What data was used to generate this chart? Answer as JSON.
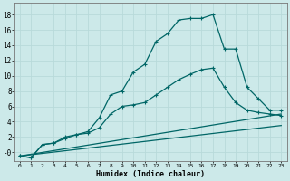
{
  "xlabel": "Humidex (Indice chaleur)",
  "background_color": "#cce9e9",
  "grid_color": "#b8dada",
  "line_color": "#006666",
  "xlim": [
    -0.5,
    23.5
  ],
  "ylim": [
    -1.2,
    19.5
  ],
  "xticks": [
    0,
    1,
    2,
    3,
    4,
    5,
    6,
    7,
    8,
    9,
    10,
    11,
    12,
    13,
    14,
    15,
    16,
    17,
    18,
    19,
    20,
    21,
    22,
    23
  ],
  "yticks": [
    0,
    2,
    4,
    6,
    8,
    10,
    12,
    14,
    16,
    18
  ],
  "series": [
    {
      "x": [
        0,
        1,
        2,
        3,
        4,
        5,
        6,
        7,
        8,
        9,
        10,
        11,
        12,
        13,
        14,
        15,
        16,
        17,
        18,
        19,
        20,
        21,
        22,
        23
      ],
      "y": [
        -0.5,
        -0.7,
        1.0,
        1.2,
        2.0,
        2.3,
        2.7,
        4.5,
        7.5,
        8.0,
        10.5,
        11.5,
        14.5,
        15.5,
        17.3,
        17.5,
        17.5,
        18.0,
        13.5,
        13.5,
        8.5,
        7.0,
        5.5,
        5.5
      ],
      "has_markers": true
    },
    {
      "x": [
        0,
        1,
        2,
        3,
        4,
        5,
        6,
        7,
        8,
        9,
        10,
        11,
        12,
        13,
        14,
        15,
        16,
        17,
        18,
        19,
        20,
        21,
        22,
        23
      ],
      "y": [
        -0.5,
        -0.7,
        1.0,
        1.2,
        1.8,
        2.3,
        2.5,
        3.2,
        5.0,
        6.0,
        6.2,
        6.5,
        7.5,
        8.5,
        9.5,
        10.2,
        10.8,
        11.0,
        8.5,
        6.5,
        5.5,
        5.2,
        5.0,
        4.8
      ],
      "has_markers": true
    },
    {
      "x": [
        0,
        23
      ],
      "y": [
        -0.5,
        5.0
      ],
      "has_markers": false
    },
    {
      "x": [
        0,
        23
      ],
      "y": [
        -0.5,
        3.5
      ],
      "has_markers": false
    }
  ]
}
